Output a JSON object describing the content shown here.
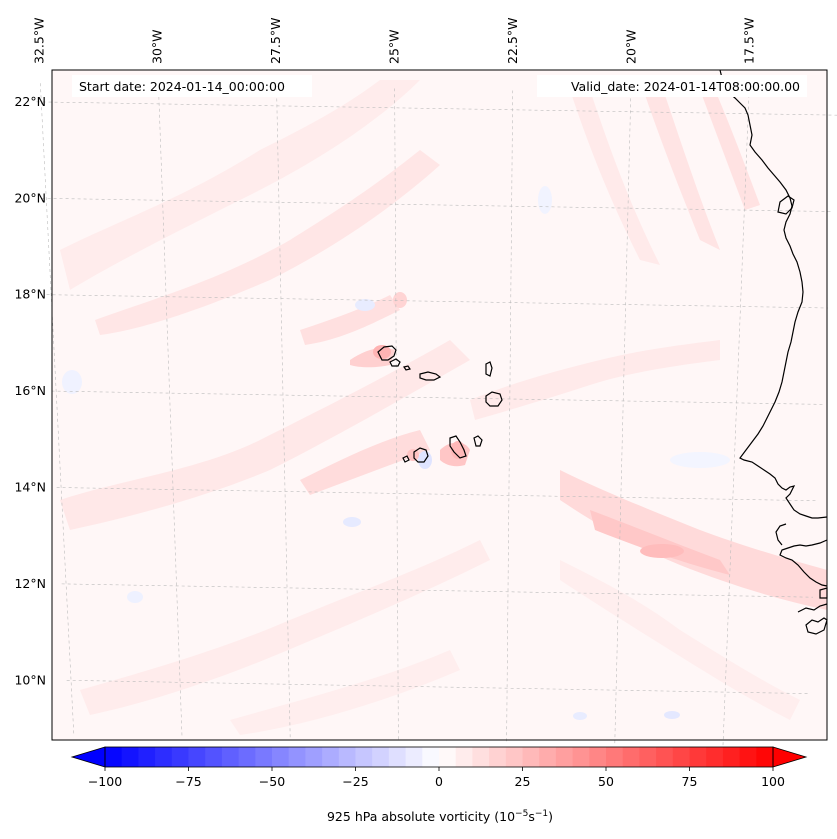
{
  "map": {
    "lon_range": [
      -32.6,
      -15.5
    ],
    "lat_range": [
      8.9,
      22.8
    ],
    "lon_ticks": [
      {
        "value": -32.5,
        "label": "32.5°W"
      },
      {
        "value": -30,
        "label": "30°W"
      },
      {
        "value": -27.5,
        "label": "27.5°W"
      },
      {
        "value": -25,
        "label": "25°W"
      },
      {
        "value": -22.5,
        "label": "22.5°W"
      },
      {
        "value": -20,
        "label": "20°W"
      },
      {
        "value": -17.5,
        "label": "17.5°W"
      }
    ],
    "lat_ticks": [
      {
        "value": 22,
        "label": "22°N"
      },
      {
        "value": 20,
        "label": "20°N"
      },
      {
        "value": 18,
        "label": "18°N"
      },
      {
        "value": 16,
        "label": "16°N"
      },
      {
        "value": 14,
        "label": "14°N"
      },
      {
        "value": 12,
        "label": "12°N"
      },
      {
        "value": 10,
        "label": "10°N"
      }
    ],
    "gridlines": true,
    "field_colors": {
      "weak_positive": "#fff2f2",
      "moderate_positive": "#ffdede",
      "strong_positive": "#ffc9c9",
      "weak_negative": "#eef1ff",
      "coastline": "#000000"
    }
  },
  "annotations": {
    "start_date": "Start date: 2024-01-14_00:00:00",
    "valid_date": "Valid_date: 2024-01-14T08:00:00.00"
  },
  "colorbar": {
    "min": -100,
    "max": 100,
    "levels": 40,
    "ticks": [
      {
        "value": -100,
        "label": "−100"
      },
      {
        "value": -75,
        "label": "−75"
      },
      {
        "value": -50,
        "label": "−50"
      },
      {
        "value": -25,
        "label": "−25"
      },
      {
        "value": 0,
        "label": "0"
      },
      {
        "value": 25,
        "label": "25"
      },
      {
        "value": 50,
        "label": "50"
      },
      {
        "value": 75,
        "label": "75"
      },
      {
        "value": 100,
        "label": "100"
      }
    ],
    "extend": "both",
    "colormap": "bwr",
    "label_main": "925 hPa absolute vorticity (10",
    "label_exp1": "−5",
    "label_mid": "s",
    "label_exp2": "−1",
    "label_end": ")"
  }
}
